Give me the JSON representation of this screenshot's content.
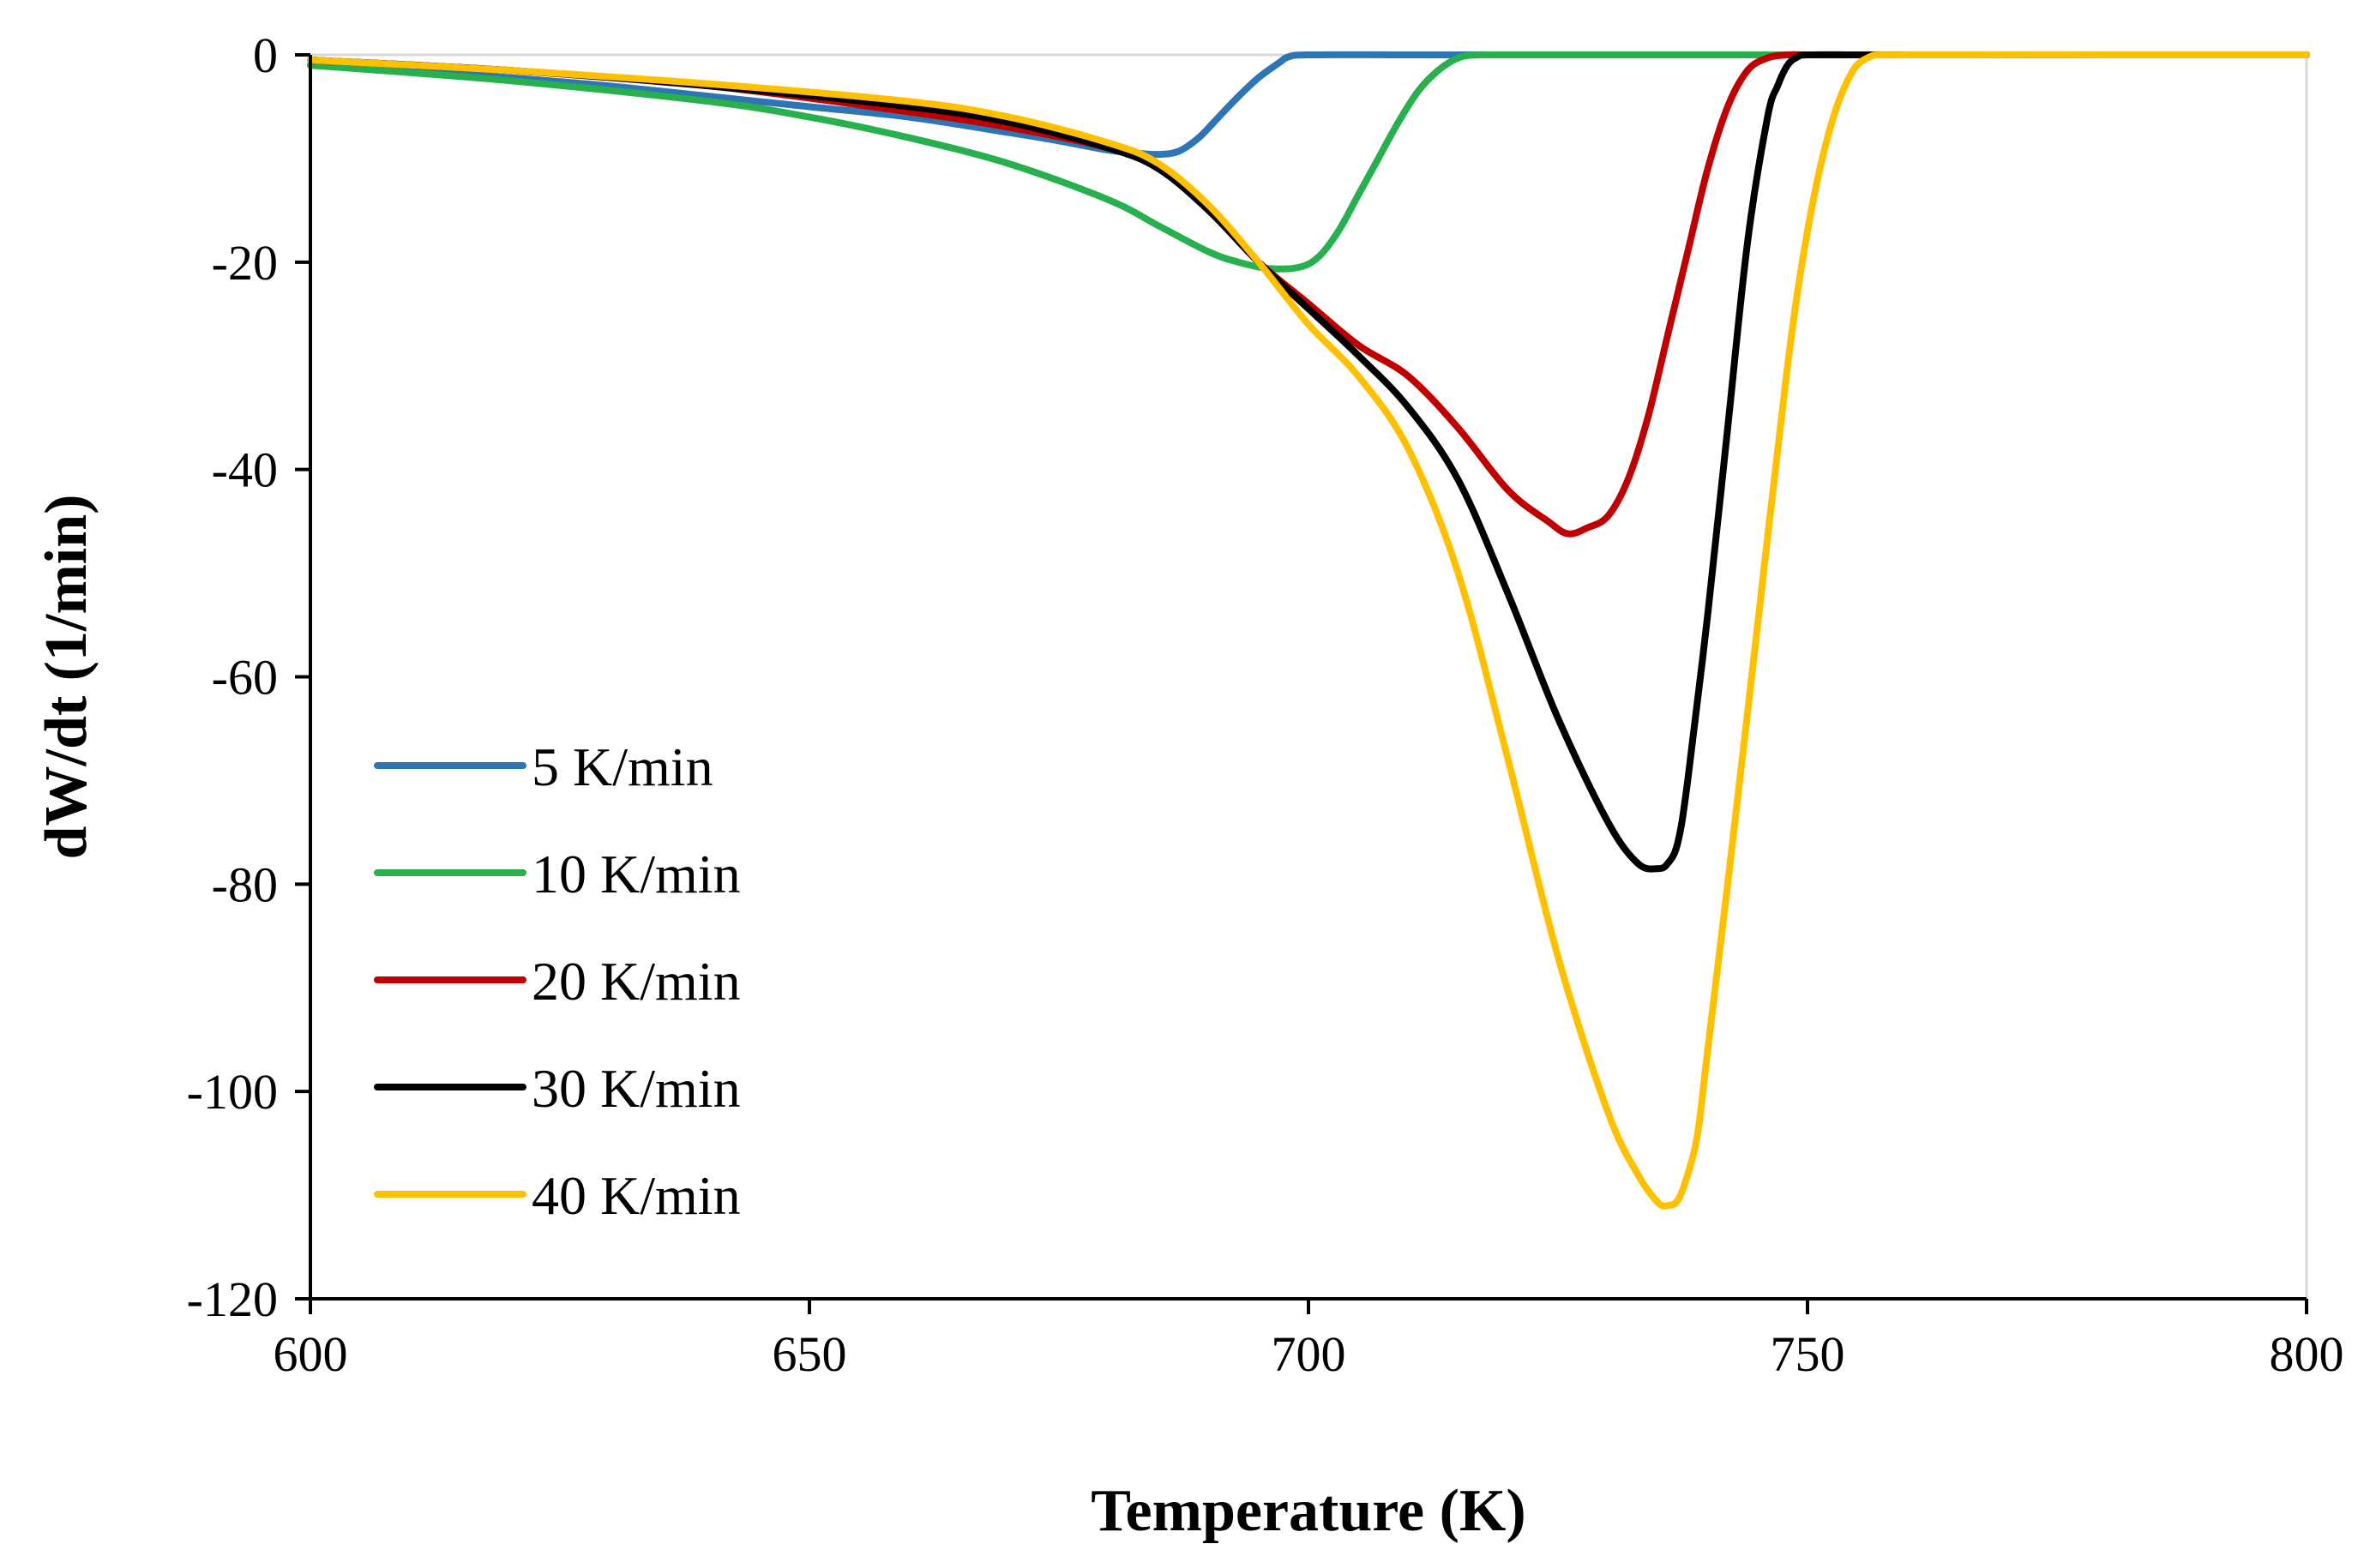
{
  "chart_data": {
    "type": "line",
    "title": "",
    "xlabel": "Temperature (K)",
    "ylabel": "dW/dt (1/min)",
    "xlim": [
      600,
      800
    ],
    "ylim": [
      -120,
      0
    ],
    "x_ticks": [
      600,
      650,
      700,
      750,
      800
    ],
    "y_ticks": [
      0,
      -20,
      -40,
      -60,
      -80,
      -100,
      -120
    ],
    "x_tick_labels": [
      "600",
      "650",
      "700",
      "750",
      "800"
    ],
    "y_tick_labels": [
      "0",
      "-20",
      "-40",
      "-60",
      "-80",
      "-100",
      "-120"
    ],
    "grid": false,
    "legend_position": "left-lower",
    "series": [
      {
        "name": "5 K/min",
        "color": "#2e75b6",
        "x": [
          600,
          610,
          620,
          630,
          640,
          650,
          660,
          670,
          675,
          680,
          683,
          685,
          687,
          689,
          691,
          693,
          695,
          697,
          698,
          700,
          710,
          720,
          740,
          760,
          780,
          800
        ],
        "y": [
          -1,
          -1.5,
          -2.2,
          -3,
          -4,
          -5,
          -6,
          -7.5,
          -8.3,
          -9.2,
          -9.5,
          -9.6,
          -9.3,
          -8,
          -6,
          -4,
          -2.2,
          -0.8,
          -0.2,
          0,
          0,
          0,
          0,
          0,
          0,
          0
        ]
      },
      {
        "name": "10 K/min",
        "color": "#28b04f",
        "x": [
          600,
          620,
          640,
          650,
          660,
          670,
          680,
          685,
          690,
          693,
          696,
          699,
          701,
          703,
          705,
          707,
          709,
          711,
          713,
          715,
          717,
          720,
          740,
          760,
          780,
          800
        ],
        "y": [
          -1,
          -2.5,
          -4.5,
          -6,
          -8,
          -10.5,
          -14,
          -16.5,
          -19,
          -20,
          -20.6,
          -20.5,
          -19.5,
          -17,
          -13.5,
          -10,
          -6.5,
          -3.5,
          -1.5,
          -0.3,
          0,
          0,
          0,
          0,
          0,
          0
        ]
      },
      {
        "name": "20 K/min",
        "color": "#c00000",
        "x": [
          600,
          620,
          640,
          660,
          670,
          680,
          685,
          690,
          695,
          700,
          705,
          710,
          715,
          720,
          724,
          726,
          728,
          730,
          732,
          734,
          736,
          738,
          740,
          742,
          744,
          746,
          748,
          750,
          755,
          760,
          780,
          800
        ],
        "y": [
          -0.5,
          -1.5,
          -3,
          -5.5,
          -7,
          -9,
          -11,
          -15,
          -20,
          -24,
          -28,
          -31,
          -36,
          -42,
          -45,
          -46.2,
          -45.6,
          -44.5,
          -41,
          -35,
          -27,
          -19,
          -11,
          -5,
          -1.5,
          -0.3,
          0,
          0,
          0,
          0,
          0,
          0
        ]
      },
      {
        "name": "30 K/min",
        "color": "#000000",
        "x": [
          600,
          620,
          640,
          660,
          670,
          680,
          685,
          690,
          695,
          700,
          705,
          710,
          715,
          720,
          725,
          730,
          733,
          735,
          736,
          737,
          738,
          740,
          742,
          744,
          746,
          747,
          748,
          749,
          750,
          755,
          760,
          780,
          800
        ],
        "y": [
          -0.5,
          -1.5,
          -3,
          -5,
          -6.5,
          -9,
          -11,
          -15,
          -20,
          -24.5,
          -29,
          -34,
          -41,
          -52,
          -64,
          -74,
          -78,
          -78.5,
          -78,
          -76,
          -70,
          -54,
          -36,
          -18,
          -6,
          -3,
          -1,
          -0.2,
          0,
          0,
          0,
          0,
          0
        ]
      },
      {
        "name": "40 K/min",
        "color": "#ffc000",
        "x": [
          600,
          620,
          640,
          660,
          670,
          680,
          685,
          690,
          695,
          700,
          705,
          710,
          715,
          720,
          725,
          730,
          733,
          735,
          736,
          737,
          738,
          739,
          740,
          742,
          745,
          748,
          750,
          752,
          754,
          756,
          760,
          780,
          800
        ],
        "y": [
          -0.5,
          -1.5,
          -2.8,
          -4.5,
          -6,
          -8.5,
          -10.5,
          -14.5,
          -20,
          -26,
          -31,
          -38,
          -50,
          -68,
          -87,
          -102,
          -108,
          -110.7,
          -111,
          -110.5,
          -108,
          -104,
          -96,
          -80,
          -55,
          -30,
          -17,
          -8,
          -2.5,
          -0.3,
          0,
          0,
          0
        ]
      }
    ]
  }
}
